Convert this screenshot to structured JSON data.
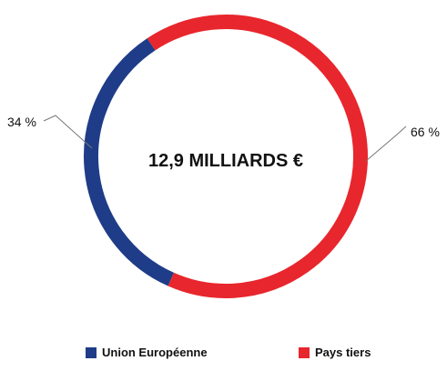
{
  "chart_data": {
    "type": "pie",
    "donut": true,
    "center_label": "12,9 MILLIARDS €",
    "categories": [
      "Union Européenne",
      "Pays tiers"
    ],
    "values": [
      34,
      66
    ],
    "value_labels": [
      "34 %",
      "66 %"
    ],
    "colors": [
      "#1F3C88",
      "#E8262D"
    ],
    "legend_position": "bottom"
  }
}
